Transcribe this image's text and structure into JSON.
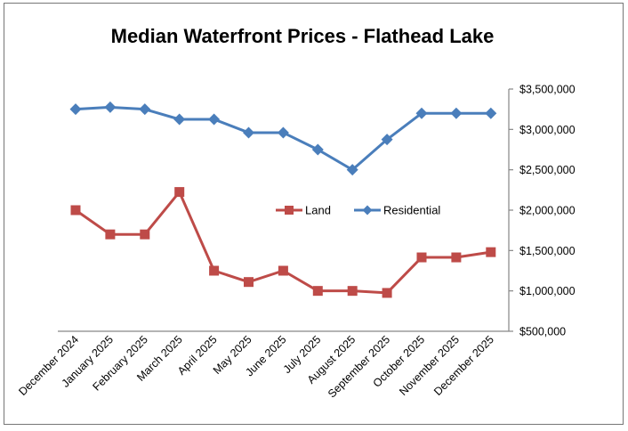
{
  "chart_data": {
    "type": "line",
    "title": "Median Waterfront Prices - Flathead Lake",
    "xlabel": "",
    "ylabel": "",
    "categories": [
      "December 2024",
      "January 2025",
      "February 2025",
      "March 2025",
      "April 2025",
      "May 2025",
      "June 2025",
      "July 2025",
      "August 2025",
      "September 2025",
      "October 2025",
      "November 2025",
      "December 2025"
    ],
    "series": [
      {
        "name": "Land",
        "color": "#be4b48",
        "marker": "square",
        "values": [
          2000000,
          1700000,
          1700000,
          2225000,
          1250000,
          1110000,
          1250000,
          1000000,
          1000000,
          975000,
          1415000,
          1415000,
          1480000
        ]
      },
      {
        "name": "Residential",
        "color": "#4a7ebb",
        "marker": "diamond",
        "values": [
          3250000,
          3275000,
          3250000,
          3125000,
          3125000,
          2960000,
          2960000,
          2750000,
          2500000,
          2875000,
          3200000,
          3200000,
          3200000
        ]
      }
    ],
    "ylim": [
      500000,
      3500000
    ],
    "yticks": [
      500000,
      1000000,
      1500000,
      2000000,
      2500000,
      3000000,
      3500000
    ],
    "ytick_labels": [
      "$500,000",
      "$1,000,000",
      "$1,500,000",
      "$2,000,000",
      "$2,500,000",
      "$3,000,000",
      "$3,500,000"
    ],
    "y_axis_side": "right",
    "grid": false,
    "legend": {
      "placement": "center-right",
      "entries": [
        "Land",
        "Residential"
      ]
    }
  }
}
